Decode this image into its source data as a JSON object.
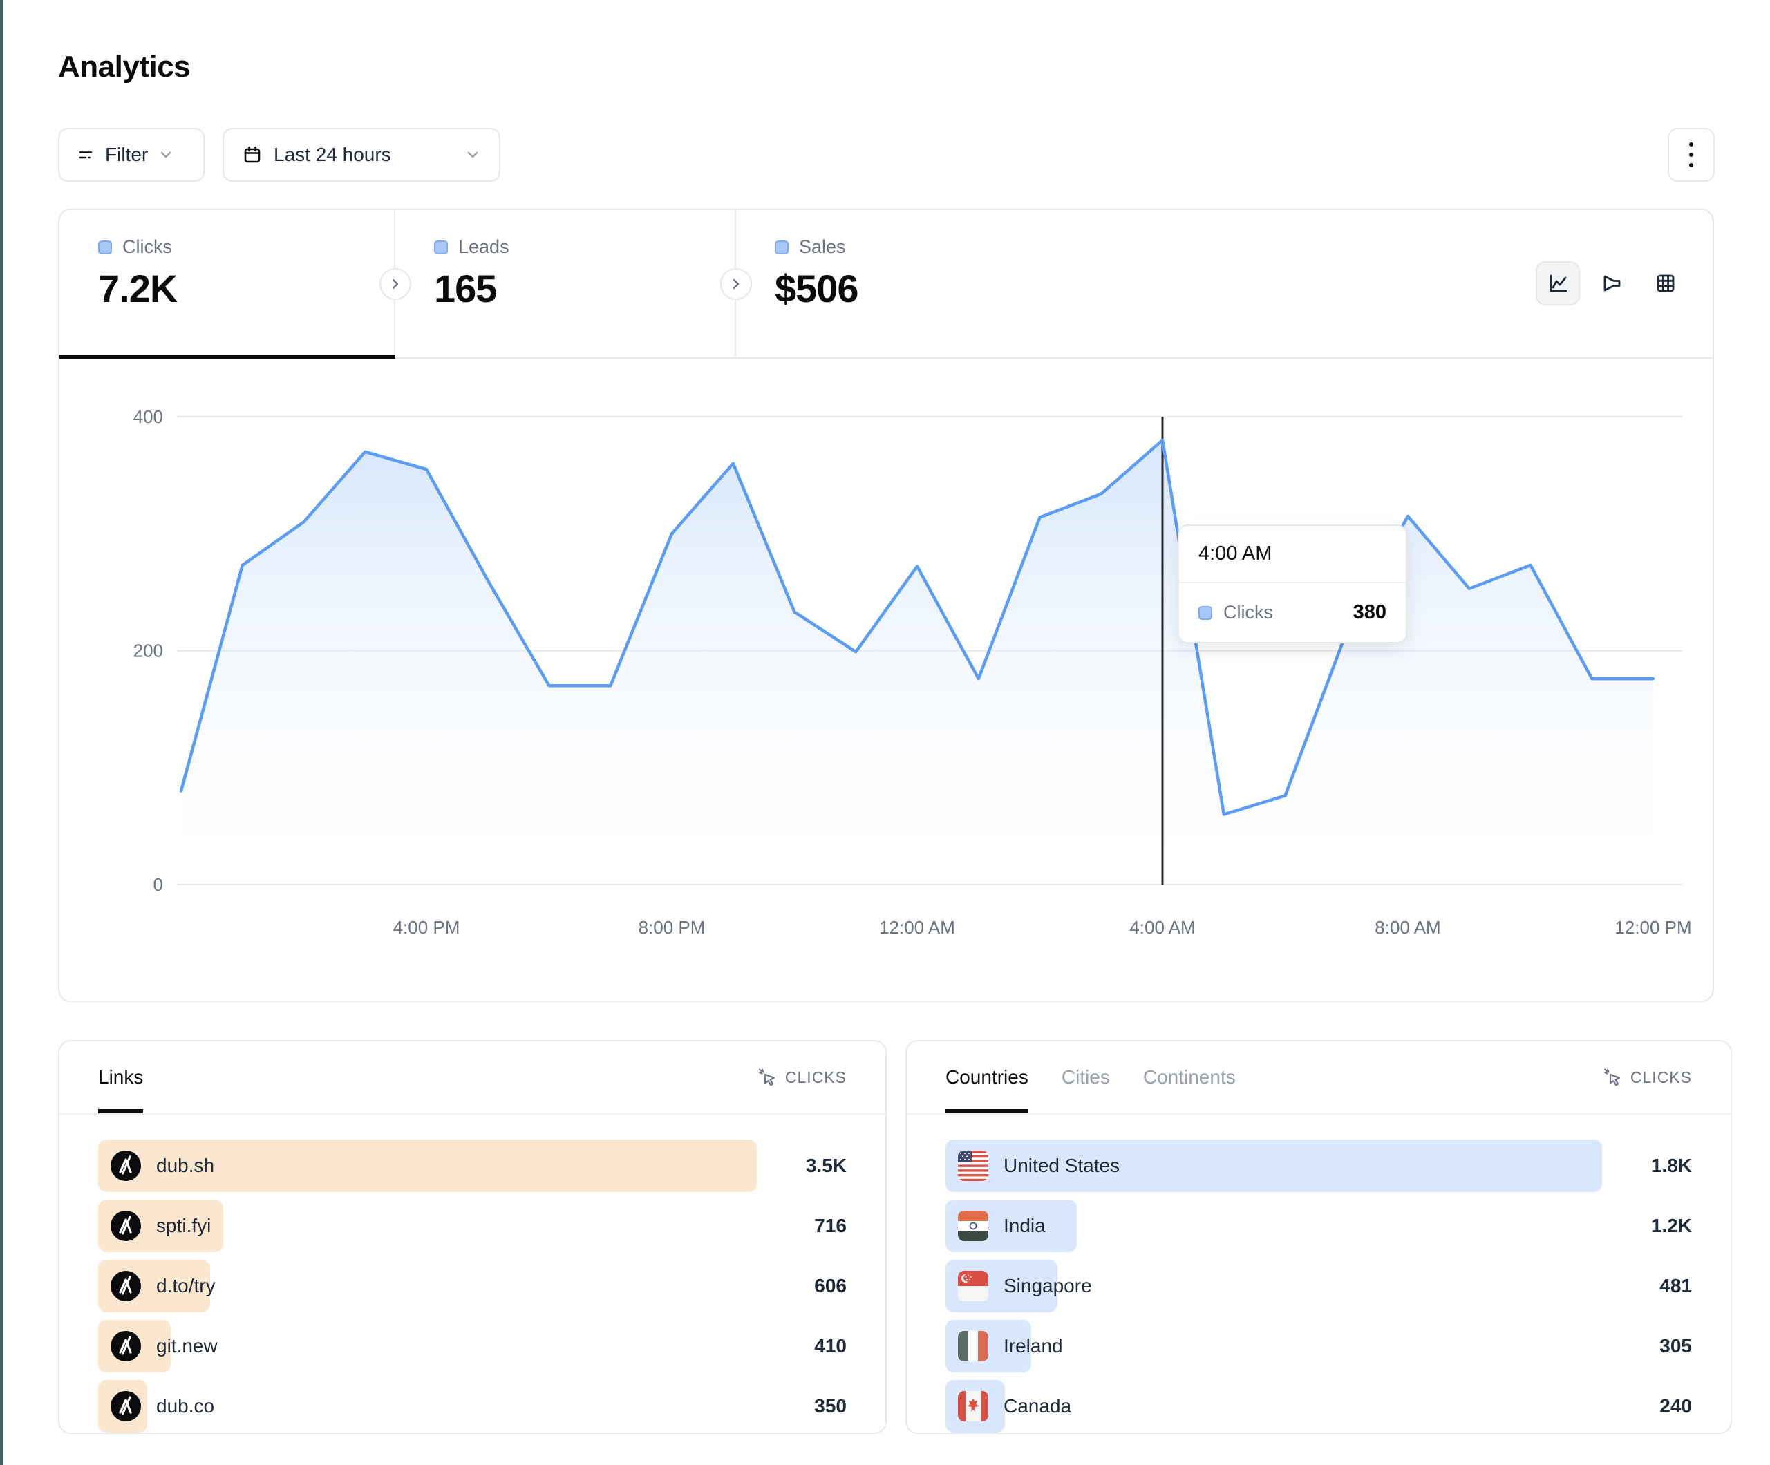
{
  "page": {
    "title": "Analytics"
  },
  "toolbar": {
    "filter_label": "Filter",
    "date_range_label": "Last 24 hours"
  },
  "stats_tabs": [
    {
      "label": "Clicks",
      "value": "7.2K",
      "active": true
    },
    {
      "label": "Leads",
      "value": "165",
      "active": false
    },
    {
      "label": "Sales",
      "value": "$506",
      "active": false
    }
  ],
  "chart_data": {
    "type": "area",
    "series_name": "Clicks",
    "x": [
      "12 PM",
      "1 PM",
      "2 PM",
      "3 PM",
      "4 PM",
      "5 PM",
      "6 PM",
      "7 PM",
      "8 PM",
      "9 PM",
      "10 PM",
      "11 PM",
      "12 AM",
      "1 AM",
      "2 AM",
      "3 AM",
      "4 AM",
      "5 AM",
      "6 AM",
      "7 AM",
      "8 AM",
      "9 AM",
      "10 AM",
      "11 AM",
      "12 PM"
    ],
    "values": [
      80,
      273,
      310,
      370,
      355,
      260,
      170,
      170,
      300,
      360,
      233,
      199,
      272,
      176,
      314,
      334,
      380,
      60,
      76,
      216,
      315,
      253,
      273,
      176,
      176
    ],
    "x_tick_labels": [
      "4:00 PM",
      "8:00 PM",
      "12:00 AM",
      "4:00 AM",
      "8:00 AM",
      "12:00 PM"
    ],
    "y_ticks": [
      0,
      200,
      400
    ],
    "ylim": [
      0,
      400
    ],
    "grid": "horizontal",
    "legend": "none",
    "highlight_index": 16,
    "highlight_label": "4:00 AM",
    "highlight_value": 380
  },
  "tooltip": {
    "time": "4:00 AM",
    "series": "Clicks",
    "value": "380"
  },
  "links_panel": {
    "title": "Links",
    "metric_label": "CLICKS",
    "rows": [
      {
        "label": "dub.sh",
        "value": "3.5K",
        "clicks": 3500,
        "bar_pct": 100
      },
      {
        "label": "spti.fyi",
        "value": "716",
        "clicks": 716,
        "bar_pct": 19
      },
      {
        "label": "d.to/try",
        "value": "606",
        "clicks": 606,
        "bar_pct": 17
      },
      {
        "label": "git.new",
        "value": "410",
        "clicks": 410,
        "bar_pct": 11
      },
      {
        "label": "dub.co",
        "value": "350",
        "clicks": 350,
        "bar_pct": 7.5
      }
    ]
  },
  "countries_panel": {
    "tabs": [
      "Countries",
      "Cities",
      "Continents"
    ],
    "active_tab": "Countries",
    "metric_label": "CLICKS",
    "rows": [
      {
        "label": "United States",
        "value": "1.8K",
        "clicks": 1800,
        "bar_pct": 100,
        "flag": "us"
      },
      {
        "label": "India",
        "value": "1.2K",
        "clicks": 1200,
        "bar_pct": 20,
        "flag": "in"
      },
      {
        "label": "Singapore",
        "value": "481",
        "clicks": 481,
        "bar_pct": 17,
        "flag": "sg"
      },
      {
        "label": "Ireland",
        "value": "305",
        "clicks": 305,
        "bar_pct": 13,
        "flag": "ie"
      },
      {
        "label": "Canada",
        "value": "240",
        "clicks": 240,
        "bar_pct": 9,
        "flag": "ca"
      }
    ]
  },
  "colors": {
    "accent_blue": "#5b9cf6",
    "area_fill_top": "#cfe2fb",
    "swatch_blue": "#a6c8f8",
    "peach_bar": "#fbe7cf",
    "blue_bar": "#d8e7fb",
    "active_underline": "#0b0b0d",
    "grid_line": "#e5e7eb",
    "muted_text": "#6b7280",
    "marker_line": "#26282b"
  }
}
